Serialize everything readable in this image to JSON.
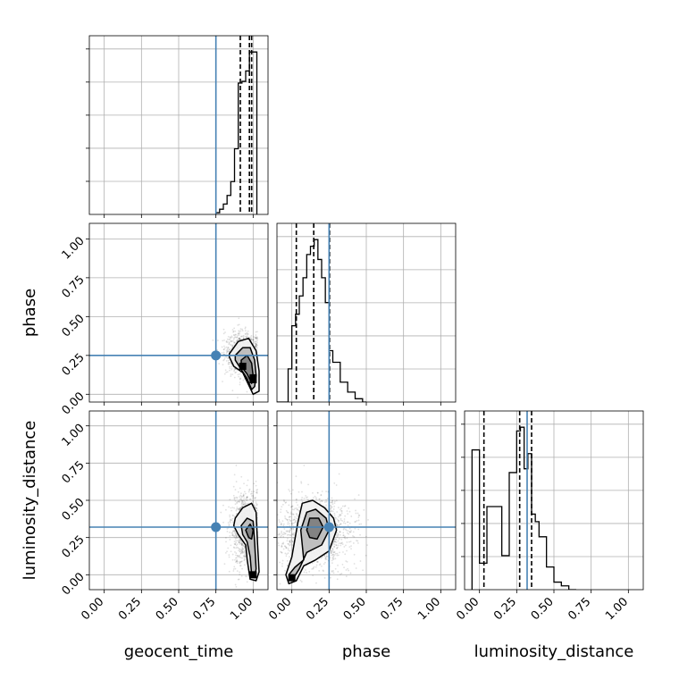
{
  "chart_data": [
    {
      "type": "histogram",
      "param": "geocent_time",
      "panel": "diag-0",
      "xlim": [
        -0.1,
        1.1
      ],
      "bin_edges": [
        0.75,
        0.775,
        0.8,
        0.825,
        0.85,
        0.875,
        0.9,
        0.925,
        0.95,
        0.975,
        1.0,
        1.025
      ],
      "counts": [
        1,
        3,
        6,
        11,
        19,
        38,
        76,
        77,
        83,
        94,
        94
      ],
      "quantiles": [
        0.914,
        0.975,
        0.99
      ],
      "truth": 0.75
    },
    {
      "type": "histogram",
      "param": "phase",
      "panel": "diag-1",
      "xlim": [
        -0.1,
        1.1
      ],
      "bin_edges": [
        -0.1,
        -0.075,
        -0.05,
        -0.025,
        0.0,
        0.025,
        0.05,
        0.075,
        0.1,
        0.125,
        0.15,
        0.175,
        0.2,
        0.225,
        0.25,
        0.275,
        0.3,
        0.325,
        0.35,
        0.375,
        0.4,
        0.425,
        0.45,
        0.475,
        0.5
      ],
      "counts": [
        0,
        0,
        0,
        20,
        46,
        53,
        64,
        75,
        89,
        94,
        98,
        86,
        75,
        60,
        31,
        24,
        24,
        12,
        12,
        6,
        6,
        2,
        2,
        0
      ],
      "quantiles": [
        0.03,
        0.147,
        0.253
      ],
      "truth": 0.25
    },
    {
      "type": "histogram",
      "param": "luminosity_distance",
      "panel": "diag-2",
      "xlim": [
        -0.1,
        1.1
      ],
      "bin_edges": [
        -0.05,
        0.0,
        0.05,
        0.1,
        0.15,
        0.2,
        0.25,
        0.275,
        0.3,
        0.325,
        0.35,
        0.375,
        0.4,
        0.45,
        0.5,
        0.55,
        0.6,
        0.65
      ],
      "counts": [
        37,
        7,
        22,
        22,
        9,
        31,
        42,
        43,
        32,
        36,
        20,
        18,
        14,
        6,
        2,
        1,
        0
      ],
      "quantiles": [
        0.03,
        0.27,
        0.35
      ],
      "truth": 0.32
    },
    {
      "type": "scatter-contour",
      "panel": "phase-vs-geocent_time",
      "xparam": "geocent_time",
      "yparam": "phase",
      "xlim": [
        -0.1,
        1.1
      ],
      "ylim": [
        -0.05,
        1.1
      ],
      "truth": [
        0.75,
        0.25
      ],
      "scatter": {
        "center": [
          0.93,
          0.26
        ],
        "spread": [
          0.06,
          0.07
        ],
        "count": 900
      },
      "contours": [
        [
          [
            0.84,
            0.26
          ],
          [
            0.9,
            0.34
          ],
          [
            0.97,
            0.36
          ],
          [
            1.02,
            0.28
          ],
          [
            1.04,
            0.15
          ],
          [
            1.04,
            0.02
          ],
          [
            1.0,
            0.0
          ],
          [
            0.97,
            0.06
          ],
          [
            0.93,
            0.14
          ],
          [
            0.87,
            0.18
          ],
          [
            0.84,
            0.24
          ]
        ],
        [
          [
            0.88,
            0.25
          ],
          [
            0.93,
            0.3
          ],
          [
            0.98,
            0.3
          ],
          [
            1.01,
            0.22
          ],
          [
            1.02,
            0.12
          ],
          [
            1.01,
            0.05
          ],
          [
            0.99,
            0.03
          ],
          [
            0.96,
            0.1
          ],
          [
            0.92,
            0.16
          ],
          [
            0.88,
            0.22
          ]
        ],
        [
          [
            0.92,
            0.22
          ],
          [
            0.96,
            0.25
          ],
          [
            0.99,
            0.2
          ],
          [
            1.0,
            0.12
          ],
          [
            0.99,
            0.07
          ],
          [
            0.96,
            0.13
          ],
          [
            0.92,
            0.18
          ]
        ]
      ]
    },
    {
      "type": "scatter-contour",
      "panel": "luminosity_distance-vs-geocent_time",
      "xparam": "geocent_time",
      "yparam": "luminosity_distance",
      "xlim": [
        -0.1,
        1.1
      ],
      "ylim": [
        -0.1,
        1.1
      ],
      "truth": [
        0.75,
        0.32
      ],
      "scatter": {
        "center": [
          0.95,
          0.3
        ],
        "spread": [
          0.05,
          0.13
        ],
        "count": 1000
      },
      "contours": [
        [
          [
            0.88,
            0.38
          ],
          [
            0.93,
            0.45
          ],
          [
            0.99,
            0.48
          ],
          [
            1.02,
            0.42
          ],
          [
            1.03,
            0.2
          ],
          [
            1.04,
            0.02
          ],
          [
            1.02,
            -0.04
          ],
          [
            0.98,
            -0.03
          ],
          [
            0.96,
            0.1
          ],
          [
            0.95,
            0.2
          ],
          [
            0.9,
            0.27
          ],
          [
            0.87,
            0.33
          ]
        ],
        [
          [
            0.92,
            0.33
          ],
          [
            0.96,
            0.38
          ],
          [
            1.0,
            0.36
          ],
          [
            1.01,
            0.22
          ],
          [
            1.02,
            0.04
          ],
          [
            1.01,
            -0.02
          ],
          [
            0.99,
            0.0
          ],
          [
            0.98,
            0.12
          ],
          [
            0.96,
            0.22
          ],
          [
            0.93,
            0.27
          ]
        ],
        [
          [
            0.95,
            0.3
          ],
          [
            0.98,
            0.34
          ],
          [
            1.0,
            0.3
          ],
          [
            0.99,
            0.24
          ],
          [
            0.97,
            0.25
          ]
        ]
      ],
      "dense_spot": [
        1.0,
        0.0
      ]
    },
    {
      "type": "scatter-contour",
      "panel": "luminosity_distance-vs-phase",
      "xparam": "phase",
      "yparam": "luminosity_distance",
      "xlim": [
        -0.1,
        1.1
      ],
      "ylim": [
        -0.1,
        1.1
      ],
      "truth": [
        0.25,
        0.32
      ],
      "scatter": {
        "center": [
          0.15,
          0.28
        ],
        "spread": [
          0.12,
          0.12
        ],
        "count": 1400
      },
      "contours": [
        [
          [
            -0.04,
            0.0
          ],
          [
            0.0,
            0.12
          ],
          [
            0.04,
            0.35
          ],
          [
            0.07,
            0.48
          ],
          [
            0.14,
            0.5
          ],
          [
            0.22,
            0.45
          ],
          [
            0.28,
            0.38
          ],
          [
            0.3,
            0.3
          ],
          [
            0.25,
            0.16
          ],
          [
            0.16,
            0.1
          ],
          [
            0.08,
            0.06
          ],
          [
            0.03,
            -0.04
          ],
          [
            -0.02,
            -0.06
          ]
        ],
        [
          [
            -0.02,
            0.0
          ],
          [
            0.02,
            0.05
          ],
          [
            0.08,
            0.1
          ],
          [
            0.06,
            0.3
          ],
          [
            0.1,
            0.42
          ],
          [
            0.16,
            0.44
          ],
          [
            0.23,
            0.38
          ],
          [
            0.25,
            0.3
          ],
          [
            0.2,
            0.2
          ],
          [
            0.1,
            0.15
          ],
          [
            0.05,
            0.04
          ],
          [
            0.0,
            -0.04
          ]
        ],
        [
          [
            0.1,
            0.3
          ],
          [
            0.12,
            0.38
          ],
          [
            0.18,
            0.38
          ],
          [
            0.21,
            0.32
          ],
          [
            0.17,
            0.24
          ],
          [
            0.12,
            0.25
          ]
        ]
      ],
      "dense_spot": [
        0.0,
        -0.02
      ]
    }
  ],
  "axes": {
    "tick_values": [
      "0.00",
      "0.25",
      "0.50",
      "0.75",
      "1.00"
    ],
    "x_labels": [
      "geocent_time",
      "phase",
      "luminosity_distance"
    ],
    "y_labels": [
      "phase",
      "luminosity_distance"
    ]
  },
  "colors": {
    "truth": "#4682b4",
    "line": "#000000",
    "grid": "#b0b0b0",
    "scatter": "#000000"
  }
}
